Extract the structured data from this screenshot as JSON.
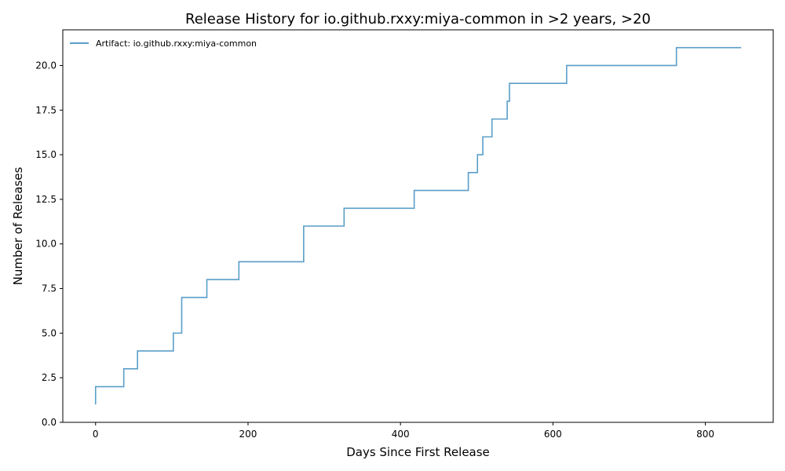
{
  "chart_data": {
    "type": "line",
    "step": "post",
    "title": "Release History for io.github.rxxy:miya-common in >2 years, >20",
    "xlabel": "Days Since First Release",
    "ylabel": "Number of Releases",
    "xlim": [
      -43,
      889
    ],
    "ylim": [
      0,
      22
    ],
    "xticks": [
      0,
      200,
      400,
      600,
      800
    ],
    "yticks": [
      0.0,
      2.5,
      5.0,
      7.5,
      10.0,
      12.5,
      15.0,
      17.5,
      20.0
    ],
    "ytick_labels": [
      "0.0",
      "2.5",
      "5.0",
      "7.5",
      "10.0",
      "12.5",
      "15.0",
      "17.5",
      "20.0"
    ],
    "grid": false,
    "legend_position": "top-left",
    "series": [
      {
        "name": "Artifact: io.github.rxxy:miya-common",
        "color": "#5a9ec9",
        "x": [
          0,
          0,
          37,
          55,
          102,
          113,
          146,
          188,
          273,
          326,
          418,
          489,
          501,
          508,
          520,
          540,
          543,
          618,
          762,
          847
        ],
        "y": [
          1,
          2,
          3,
          4,
          5,
          7,
          8,
          9,
          11,
          12,
          13,
          14,
          15,
          16,
          17,
          18,
          19,
          20,
          21,
          21
        ]
      }
    ]
  }
}
